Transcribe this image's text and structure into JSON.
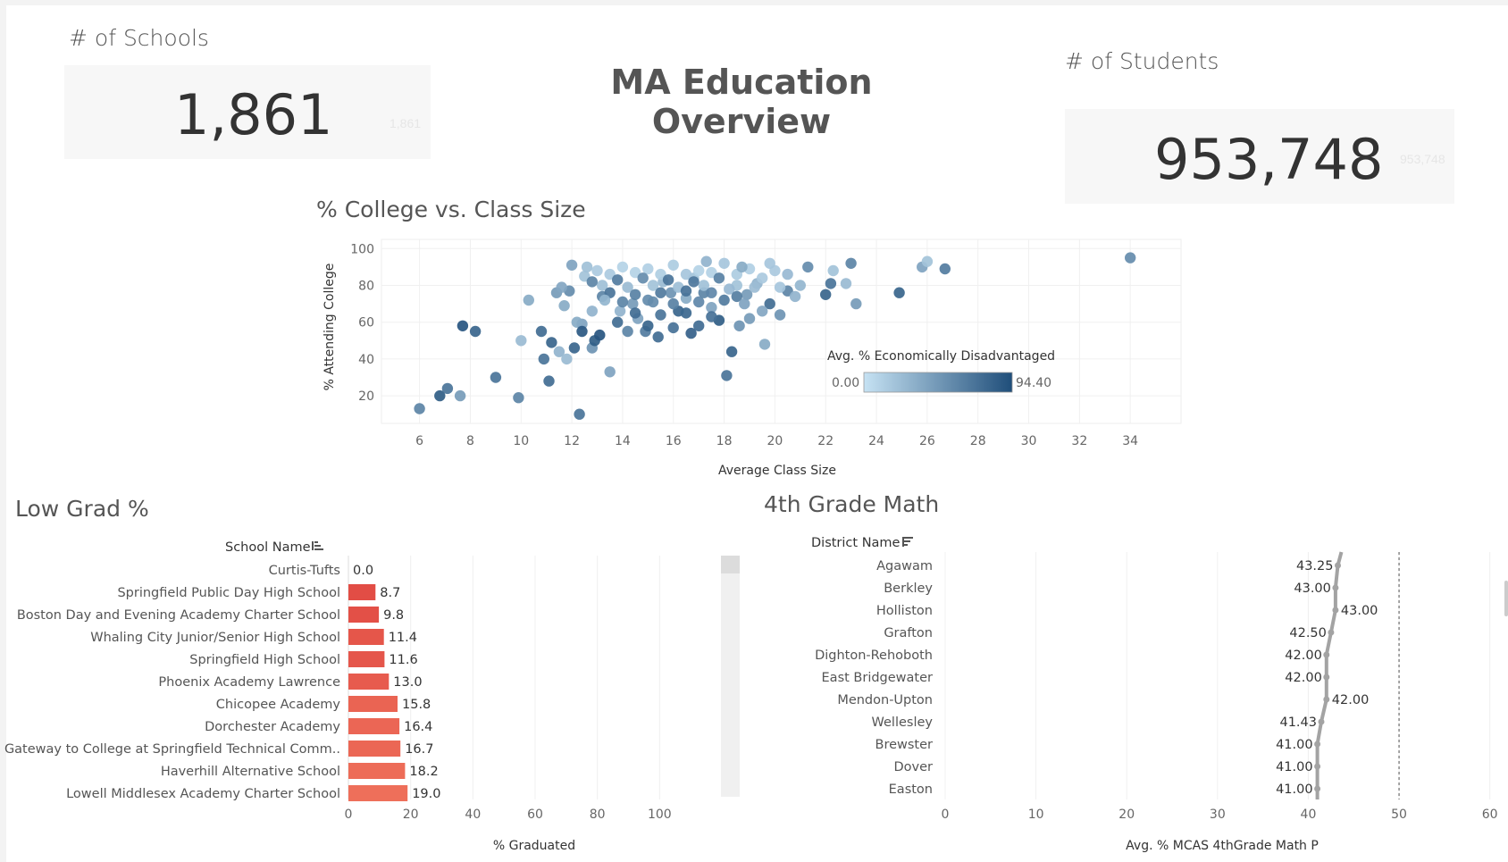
{
  "dashboard_title": "MA Education Overview",
  "kpi_schools": {
    "title": "# of Schools",
    "value": "1,861",
    "ghost": "1,861"
  },
  "kpi_students": {
    "title": "# of Students",
    "value": "953,748",
    "ghost": "953,748"
  },
  "scatter_title": "% College vs. Class Size",
  "bar_title": "Low Grad %",
  "math_title": "4th Grade Math",
  "legend": {
    "title": "Avg. % Economically Disadvantaged",
    "min": "0.00",
    "max": "94.40",
    "color_low": "#c6e2f3",
    "color_high": "#1f4e7a"
  },
  "colors": {
    "bar_dark": "#d73033",
    "bar_light": "#ee6f5a",
    "line": "#a3a3a3",
    "ref": "#888888"
  },
  "chart_data": [
    {
      "type": "scatter",
      "title": "% College vs. Class Size",
      "xlabel": "Average Class Size",
      "ylabel": "% Attending College",
      "xlim": [
        4.5,
        36
      ],
      "ylim": [
        5,
        105
      ],
      "xticks": [
        6,
        8,
        10,
        12,
        14,
        16,
        18,
        20,
        22,
        24,
        26,
        28,
        30,
        32,
        34
      ],
      "yticks": [
        20,
        40,
        60,
        80,
        100
      ],
      "grid": true,
      "legend_position": "bottom-right",
      "points": [
        [
          6.0,
          13,
          60
        ],
        [
          6.8,
          20,
          85
        ],
        [
          7.1,
          24,
          70
        ],
        [
          7.6,
          20,
          45
        ],
        [
          7.7,
          58,
          90
        ],
        [
          8.2,
          55,
          80
        ],
        [
          9.0,
          30,
          70
        ],
        [
          9.9,
          19,
          60
        ],
        [
          10.0,
          50,
          25
        ],
        [
          10.3,
          72,
          35
        ],
        [
          10.8,
          55,
          75
        ],
        [
          10.9,
          40,
          70
        ],
        [
          11.1,
          28,
          75
        ],
        [
          11.2,
          49,
          80
        ],
        [
          11.4,
          76,
          45
        ],
        [
          11.5,
          44,
          30
        ],
        [
          11.7,
          69,
          35
        ],
        [
          11.8,
          40,
          25
        ],
        [
          11.9,
          77,
          55
        ],
        [
          12.1,
          46,
          80
        ],
        [
          12.3,
          10,
          70
        ],
        [
          12.4,
          59,
          40
        ],
        [
          12.8,
          46,
          50
        ],
        [
          12.9,
          50,
          85
        ],
        [
          13.2,
          74,
          60
        ],
        [
          13.5,
          33,
          40
        ],
        [
          13.8,
          60,
          75
        ],
        [
          13.9,
          66,
          30
        ],
        [
          14.4,
          70,
          45
        ],
        [
          14.6,
          62,
          40
        ],
        [
          14.9,
          55,
          65
        ],
        [
          15.2,
          71,
          55
        ],
        [
          15.6,
          82,
          25
        ],
        [
          15.9,
          76,
          50
        ],
        [
          16.2,
          66,
          80
        ],
        [
          16.5,
          73,
          35
        ],
        [
          16.8,
          84,
          20
        ],
        [
          17.2,
          76,
          60
        ],
        [
          17.5,
          68,
          40
        ],
        [
          17.8,
          61,
          85
        ],
        [
          18.1,
          31,
          70
        ],
        [
          18.3,
          44,
          80
        ],
        [
          18.5,
          80,
          20
        ],
        [
          18.9,
          75,
          45
        ],
        [
          19.3,
          81,
          30
        ],
        [
          19.6,
          48,
          35
        ],
        [
          19.8,
          70,
          75
        ],
        [
          20.2,
          64,
          50
        ],
        [
          20.5,
          77,
          60
        ],
        [
          21.3,
          90,
          55
        ],
        [
          22.0,
          75,
          80
        ],
        [
          22.2,
          81,
          70
        ],
        [
          22.8,
          81,
          25
        ],
        [
          23.0,
          92,
          60
        ],
        [
          23.2,
          70,
          45
        ],
        [
          24.9,
          76,
          80
        ],
        [
          25.8,
          90,
          40
        ],
        [
          26.0,
          93,
          20
        ],
        [
          26.7,
          89,
          65
        ],
        [
          34.0,
          95,
          55
        ],
        [
          12.0,
          91,
          40
        ],
        [
          13.0,
          88,
          15
        ],
        [
          14.0,
          90,
          10
        ],
        [
          15.0,
          89,
          12
        ],
        [
          16.0,
          91,
          14
        ],
        [
          17.0,
          88,
          10
        ],
        [
          18.0,
          92,
          18
        ],
        [
          19.0,
          89,
          12
        ],
        [
          20.0,
          88,
          16
        ],
        [
          12.5,
          85,
          20
        ],
        [
          13.5,
          86,
          15
        ],
        [
          14.5,
          87,
          10
        ],
        [
          15.5,
          86,
          13
        ],
        [
          16.5,
          86,
          18
        ],
        [
          17.5,
          87,
          11
        ],
        [
          18.5,
          86,
          14
        ],
        [
          19.5,
          84,
          16
        ],
        [
          13.2,
          80,
          22
        ],
        [
          14.2,
          79,
          25
        ],
        [
          15.2,
          80,
          20
        ],
        [
          16.2,
          79,
          23
        ],
        [
          17.2,
          80,
          21
        ],
        [
          18.2,
          78,
          26
        ],
        [
          19.2,
          79,
          24
        ],
        [
          20.2,
          79,
          18
        ],
        [
          12.8,
          82,
          60
        ],
        [
          13.8,
          83,
          65
        ],
        [
          14.8,
          84,
          55
        ],
        [
          15.8,
          83,
          70
        ],
        [
          16.8,
          82,
          68
        ],
        [
          17.8,
          84,
          62
        ],
        [
          13.5,
          76,
          70
        ],
        [
          14.5,
          75,
          62
        ],
        [
          15.5,
          76,
          66
        ],
        [
          16.5,
          77,
          72
        ],
        [
          17.5,
          76,
          58
        ],
        [
          18.5,
          74,
          64
        ],
        [
          14.0,
          71,
          60
        ],
        [
          15.0,
          72,
          55
        ],
        [
          16.0,
          70,
          62
        ],
        [
          17.0,
          71,
          58
        ],
        [
          18.0,
          72,
          66
        ],
        [
          14.5,
          65,
          75
        ],
        [
          15.5,
          64,
          70
        ],
        [
          16.5,
          65,
          78
        ],
        [
          17.5,
          63,
          72
        ],
        [
          15.0,
          58,
          80
        ],
        [
          16.0,
          57,
          72
        ],
        [
          17.0,
          58,
          76
        ],
        [
          12.2,
          60,
          35
        ],
        [
          12.8,
          66,
          30
        ],
        [
          13.3,
          72,
          28
        ],
        [
          18.8,
          70,
          40
        ],
        [
          19.5,
          66,
          38
        ],
        [
          20.8,
          74,
          30
        ],
        [
          21.0,
          80,
          28
        ],
        [
          11.6,
          79,
          38
        ],
        [
          12.6,
          90,
          22
        ],
        [
          22.3,
          88,
          20
        ],
        [
          20.5,
          86,
          26
        ],
        [
          19.8,
          92,
          18
        ],
        [
          18.7,
          90,
          35
        ],
        [
          17.3,
          93,
          30
        ],
        [
          15.4,
          52,
          75
        ],
        [
          16.7,
          54,
          82
        ],
        [
          14.2,
          55,
          60
        ],
        [
          13.1,
          53,
          90
        ],
        [
          12.4,
          55,
          88
        ],
        [
          18.6,
          58,
          50
        ],
        [
          19.0,
          62,
          45
        ]
      ]
    },
    {
      "type": "bar",
      "title": "Low Grad %",
      "header": "School Name",
      "xlabel": "% Graduated",
      "xlim": [
        0,
        120
      ],
      "xticks": [
        0,
        20,
        40,
        60,
        80,
        100
      ],
      "categories": [
        "Curtis-Tufts",
        "Springfield Public Day High School",
        "Boston Day and Evening Academy Charter School",
        "Whaling City Junior/Senior High School",
        "Springfield High School",
        "Phoenix Academy Lawrence",
        "Chicopee Academy",
        "Dorchester Academy",
        "Gateway to College at Springfield Technical Comm..",
        "Haverhill Alternative School",
        "Lowell Middlesex Academy Charter School"
      ],
      "values": [
        0.0,
        8.7,
        9.8,
        11.4,
        11.6,
        13.0,
        15.8,
        16.4,
        16.7,
        18.2,
        19.0
      ],
      "labels": [
        "0.0",
        "8.7",
        "9.8",
        "11.4",
        "11.6",
        "13.0",
        "15.8",
        "16.4",
        "16.7",
        "18.2",
        "19.0"
      ]
    },
    {
      "type": "line",
      "title": "4th Grade Math",
      "header": "District Name",
      "xlabel": "Avg. % MCAS 4thGrade Math P",
      "xlim": [
        0,
        62
      ],
      "xticks": [
        0,
        10,
        20,
        30,
        40,
        50,
        60
      ],
      "reference_line": 50,
      "categories": [
        "Agawam",
        "Berkley",
        "Holliston",
        "Grafton",
        "Dighton-Rehoboth",
        "East Bridgewater",
        "Mendon-Upton",
        "Wellesley",
        "Brewster",
        "Dover",
        "Easton"
      ],
      "values": [
        43.25,
        43.0,
        43.0,
        42.5,
        42.0,
        42.0,
        42.0,
        41.43,
        41.0,
        41.0,
        41.0
      ],
      "labels": [
        "43.25",
        "43.00",
        "43.00",
        "42.50",
        "42.00",
        "42.00",
        "42.00",
        "41.43",
        "41.00",
        "41.00",
        "41.00"
      ],
      "label_side": [
        "left",
        "left",
        "right",
        "left",
        "left",
        "left",
        "right",
        "left",
        "left",
        "left",
        "left"
      ]
    }
  ]
}
